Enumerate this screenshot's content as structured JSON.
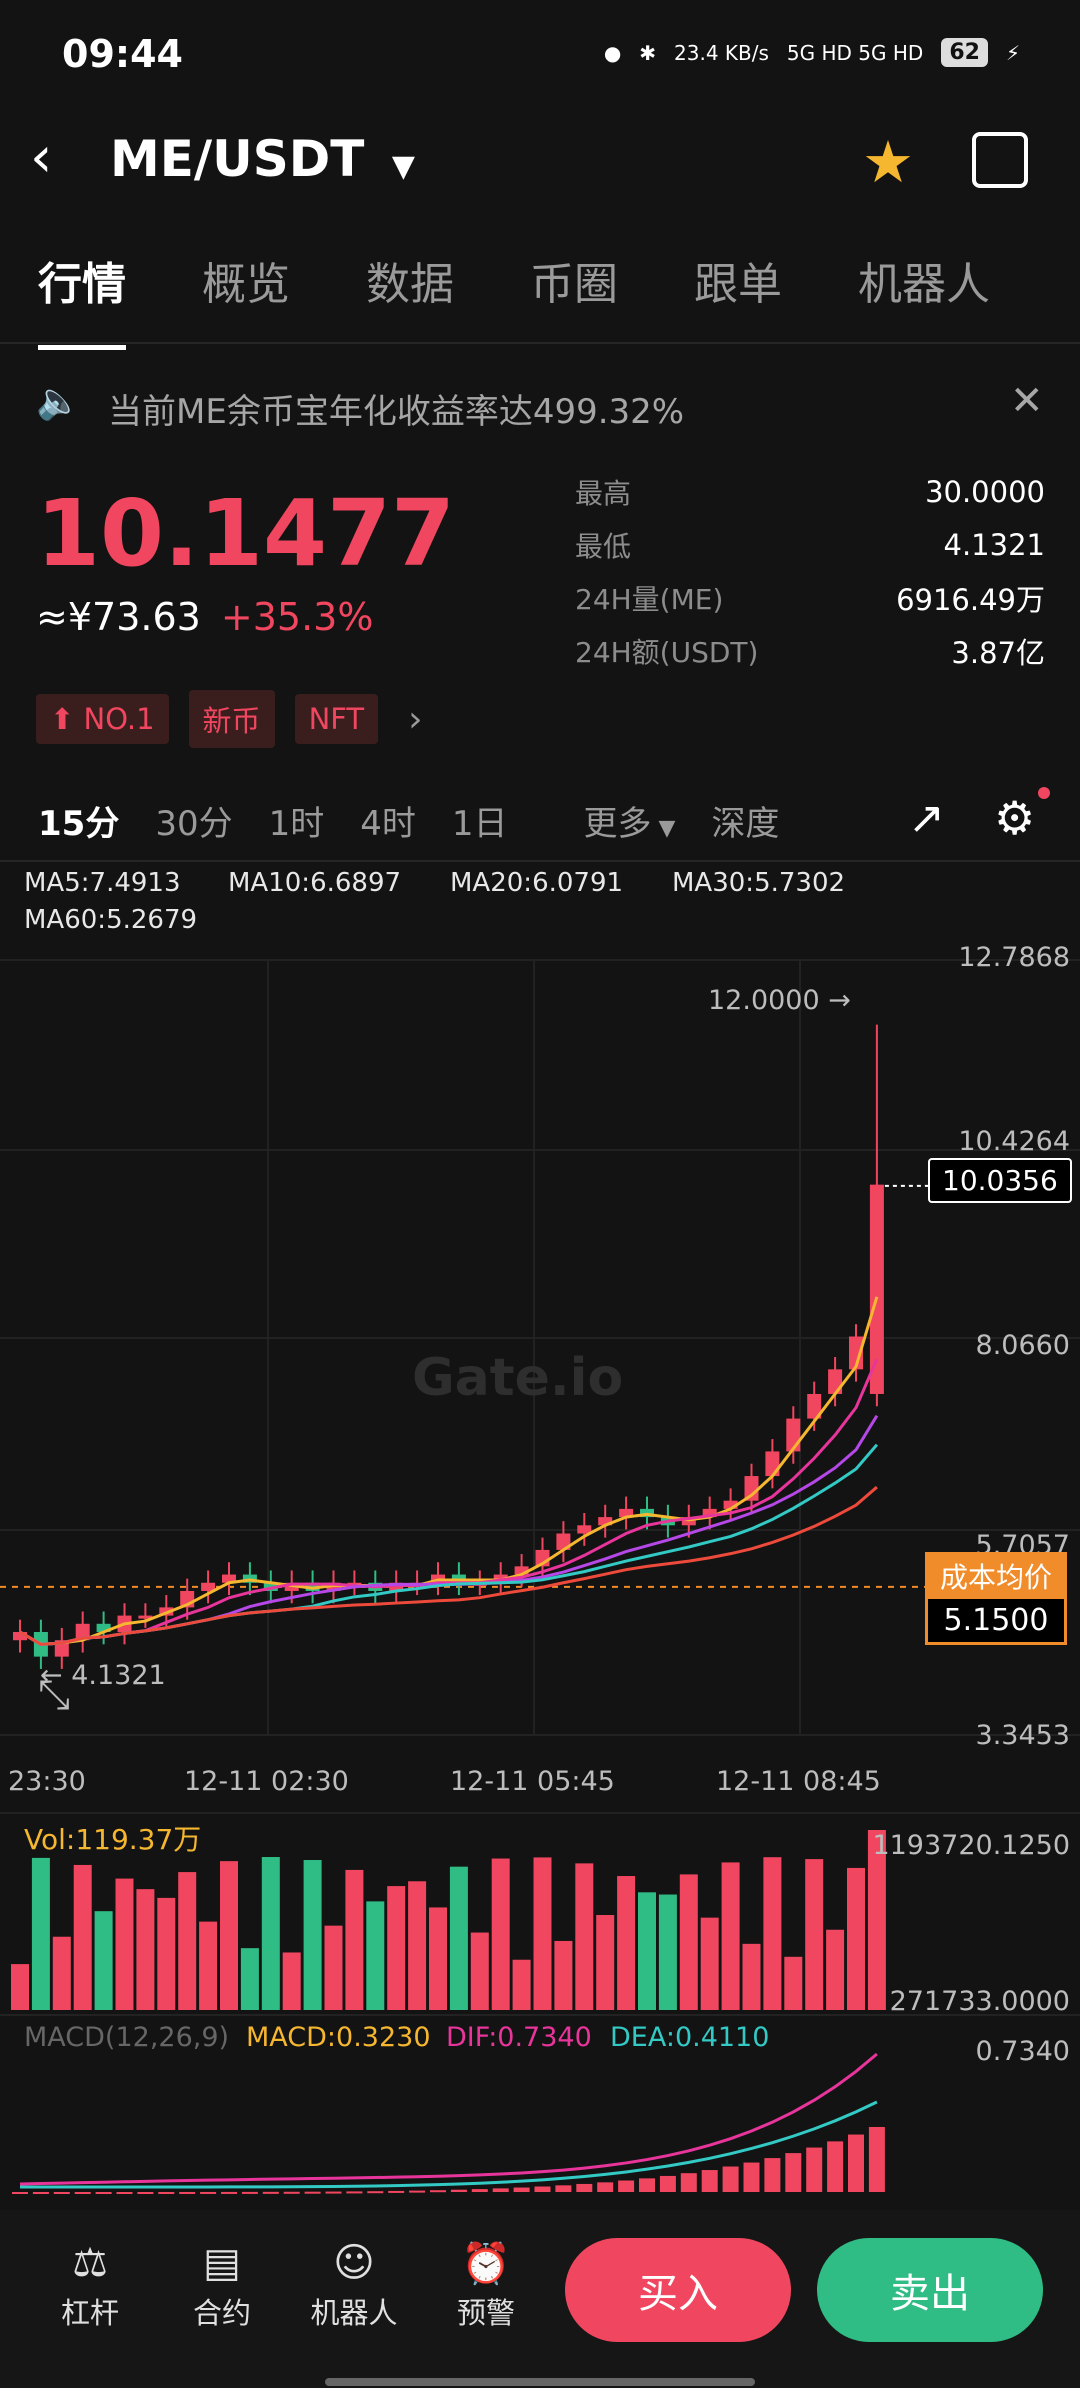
{
  "status": {
    "time": "09:44",
    "net": "23.4 KB/s",
    "signal": "5G HD 5G HD",
    "battery": "62"
  },
  "header": {
    "title": "ME/USDT"
  },
  "tabs": [
    "行情",
    "概览",
    "数据",
    "币圈",
    "跟单",
    "机器人"
  ],
  "notice": {
    "text": "当前ME余币宝年化收益率达499.32%"
  },
  "price": {
    "last": "10.1477",
    "cny": "≈¥73.63",
    "change": "+35.3%"
  },
  "stats": [
    {
      "k": "最高",
      "v": "30.0000"
    },
    {
      "k": "最低",
      "v": "4.1321"
    },
    {
      "k": "24H量(ME)",
      "v": "6916.49万"
    },
    {
      "k": "24H额(USDT)",
      "v": "3.87亿"
    }
  ],
  "tags": [
    "NO.1",
    "新币",
    "NFT"
  ],
  "timeframes": [
    "15分",
    "30分",
    "1时",
    "4时",
    "1日",
    "更多",
    "深度"
  ],
  "ma": {
    "ma5": "MA5:7.4913",
    "ma10": "MA10:6.6897",
    "ma20": "MA20:6.0791",
    "ma30": "MA30:5.7302",
    "ma60": "MA60:5.2679"
  },
  "chart_data": {
    "type": "candlestick",
    "y_ticks": [
      "12.7868",
      "10.4264",
      "8.0660",
      "5.7057",
      "3.3453"
    ],
    "x_ticks": [
      "23:30",
      "12-11 02:30",
      "12-11 05:45",
      "12-11 08:45"
    ],
    "max_label": "12.0000 →",
    "min_label": "← 4.1321",
    "current": "10.0356",
    "cost_label": "成本均价",
    "cost_value": "5.1500",
    "watermark": "Gate.io",
    "close": [
      4.6,
      4.3,
      4.5,
      4.7,
      4.6,
      4.8,
      4.8,
      4.9,
      5.1,
      5.2,
      5.3,
      5.2,
      5.1,
      5.2,
      5.1,
      5.2,
      5.2,
      5.1,
      5.2,
      5.2,
      5.3,
      5.2,
      5.2,
      5.3,
      5.4,
      5.6,
      5.8,
      5.9,
      6.0,
      6.1,
      6.0,
      5.9,
      6.0,
      6.1,
      6.2,
      6.5,
      6.8,
      7.2,
      7.5,
      7.8,
      8.2,
      10.05
    ],
    "volume": {
      "label": "Vol:119.37万",
      "max": "1193720.1250",
      "min": "271733.0000"
    },
    "macd": {
      "params": "MACD(12,26,9)",
      "macd": "MACD:0.3230",
      "dif": "DIF:0.7340",
      "dea": "DEA:0.4110",
      "max": "0.7340"
    }
  },
  "bottom": {
    "items": [
      "杠杆",
      "合约",
      "机器人",
      "预警"
    ],
    "buy": "买入",
    "sell": "卖出"
  },
  "colors": {
    "up": "#f0465f",
    "down": "#2fbd85",
    "ma5": "#f5b630",
    "ma10": "#e8359b",
    "ma20": "#b548e6",
    "ma30": "#33c9c4",
    "ma60": "#ee4a3b"
  }
}
